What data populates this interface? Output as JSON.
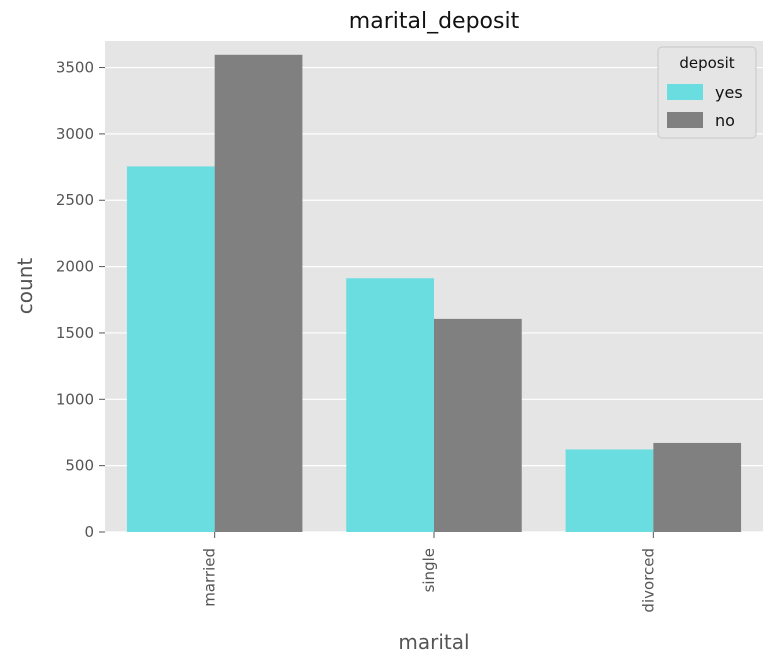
{
  "chart_data": {
    "type": "bar",
    "title": "marital_deposit",
    "xlabel": "marital",
    "ylabel": "count",
    "categories": [
      "married",
      "single",
      "divorced"
    ],
    "series": [
      {
        "name": "yes",
        "values": [
          2755,
          1912,
          622
        ],
        "color": "#6adde0"
      },
      {
        "name": "no",
        "values": [
          3596,
          1606,
          671
        ],
        "color": "#808080"
      }
    ],
    "ylim": [
      0,
      3700
    ],
    "yticks": [
      0,
      500,
      1000,
      1500,
      2000,
      2500,
      3000,
      3500
    ],
    "grid": true,
    "legend": {
      "title": "deposit",
      "placement": "top-right"
    },
    "background_color": "#e5e5e5",
    "grid_color": "#ffffff"
  }
}
